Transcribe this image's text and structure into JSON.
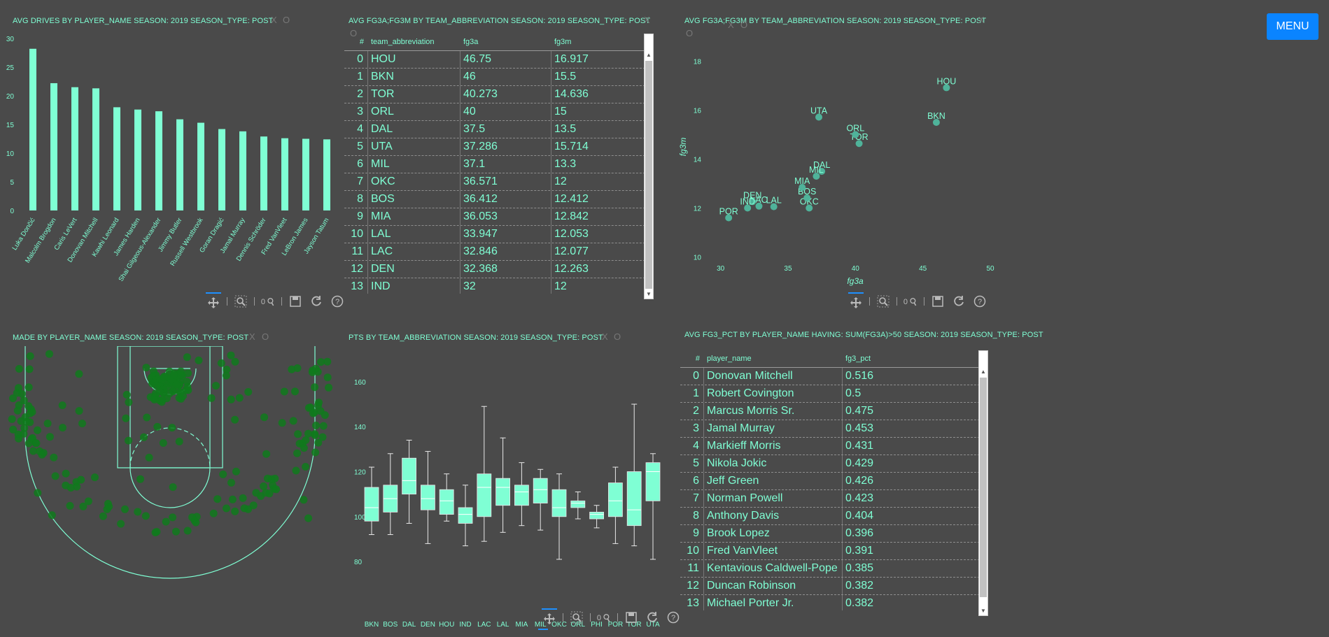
{
  "menu": {
    "label": "MENU"
  },
  "drives_panel": {
    "title": "AVG DRIVES BY PLAYER_NAME SEASON: 2019 SEASON_TYPE: POST",
    "close": "X",
    "pop": "O",
    "chart_data": {
      "type": "bar",
      "categories": [
        "Luka Dončić",
        "Malcolm Brogdon",
        "Caris LeVert",
        "Donovan Mitchell",
        "Kawhi Leonard",
        "James Harden",
        "Shai Gilgeous-Alexander",
        "Jimmy Butler",
        "Russell Westbrook",
        "Goran Dragić",
        "Jamal Murray",
        "Dennis Schröder",
        "Fred VanVleet",
        "LeBron James",
        "Jayson Tatum"
      ],
      "values": [
        28.2,
        22.2,
        21.5,
        21.3,
        18.0,
        17.6,
        17.3,
        15.9,
        15.3,
        14.2,
        13.8,
        12.9,
        12.6,
        12.5,
        12.4
      ],
      "ylim": [
        0,
        30
      ],
      "yticks": [
        "0",
        "5",
        "10",
        "15",
        "20",
        "25",
        "30"
      ],
      "color": "#7fffd4"
    }
  },
  "fg3_team_table": {
    "title": "AVG FG3A;FG3M BY TEAM_ABBREVIATION SEASON: 2019 SEASON_TYPE: POST",
    "close": "X",
    "pop": "O",
    "columns": [
      "#",
      "team_abbreviation",
      "fg3a",
      "fg3m"
    ],
    "rows": [
      [
        "0",
        "HOU",
        "46.75",
        "16.917"
      ],
      [
        "1",
        "BKN",
        "46",
        "15.5"
      ],
      [
        "2",
        "TOR",
        "40.273",
        "14.636"
      ],
      [
        "3",
        "ORL",
        "40",
        "15"
      ],
      [
        "4",
        "DAL",
        "37.5",
        "13.5"
      ],
      [
        "5",
        "UTA",
        "37.286",
        "15.714"
      ],
      [
        "6",
        "MIL",
        "37.1",
        "13.3"
      ],
      [
        "7",
        "OKC",
        "36.571",
        "12"
      ],
      [
        "8",
        "BOS",
        "36.412",
        "12.412"
      ],
      [
        "9",
        "MIA",
        "36.053",
        "12.842"
      ],
      [
        "10",
        "LAL",
        "33.947",
        "12.053"
      ],
      [
        "11",
        "LAC",
        "32.846",
        "12.077"
      ],
      [
        "12",
        "DEN",
        "32.368",
        "12.263"
      ],
      [
        "13",
        "IND",
        "32",
        "12"
      ]
    ]
  },
  "fg3_scatter": {
    "title": "AVG FG3A;FG3M BY TEAM_ABBREVIATION SEASON: 2019 SEASON_TYPE: POST",
    "close": "X",
    "pop": "O",
    "chart_data": {
      "type": "scatter",
      "xlabel": "fg3a",
      "ylabel": "fg3m",
      "xlim": [
        29.5,
        50
      ],
      "ylim": [
        9.5,
        18.5
      ],
      "xticks": [
        "30",
        "35",
        "40",
        "45",
        "50"
      ],
      "yticks": [
        "10",
        "12",
        "14",
        "16",
        "18"
      ],
      "points": [
        {
          "label": "HOU",
          "x": 46.75,
          "y": 16.917
        },
        {
          "label": "BKN",
          "x": 46,
          "y": 15.5
        },
        {
          "label": "TOR",
          "x": 40.273,
          "y": 14.636
        },
        {
          "label": "ORL",
          "x": 40,
          "y": 15
        },
        {
          "label": "DAL",
          "x": 37.5,
          "y": 13.5
        },
        {
          "label": "UTA",
          "x": 37.286,
          "y": 15.714
        },
        {
          "label": "MIL",
          "x": 37.1,
          "y": 13.3
        },
        {
          "label": "OKC",
          "x": 36.571,
          "y": 12
        },
        {
          "label": "BOS",
          "x": 36.412,
          "y": 12.412
        },
        {
          "label": "MIA",
          "x": 36.053,
          "y": 12.842
        },
        {
          "label": "LAL",
          "x": 33.947,
          "y": 12.053
        },
        {
          "label": "LAC",
          "x": 32.846,
          "y": 12.077
        },
        {
          "label": "DEN",
          "x": 32.368,
          "y": 12.263
        },
        {
          "label": "IND",
          "x": 32,
          "y": 12
        },
        {
          "label": "POR",
          "x": 30.6,
          "y": 11.6
        }
      ],
      "color": "#4fb39a"
    }
  },
  "shots_panel": {
    "title": "MADE BY PLAYER_NAME SEASON: 2019 SEASON_TYPE: POST",
    "close": "X",
    "pop": "O",
    "court_color": "#7fffd4",
    "shot_color": "#0f7a1c"
  },
  "pts_panel": {
    "title": "PTS BY TEAM_ABBREVIATION SEASON: 2019 SEASON_TYPE: POST",
    "close": "X",
    "pop": "O",
    "chart_data": {
      "type": "box",
      "categories": [
        "BKN",
        "BOS",
        "DAL",
        "DEN",
        "HOU",
        "IND",
        "LAC",
        "LAL",
        "MIA",
        "MIL",
        "OKC",
        "ORL",
        "PHI",
        "POR",
        "TOR",
        "UTA"
      ],
      "ylim": [
        76,
        164
      ],
      "yticks": [
        "80",
        "100",
        "120",
        "140",
        "160"
      ],
      "boxes": [
        {
          "min": 92,
          "q1": 98,
          "median": 104,
          "q3": 113,
          "max": 122
        },
        {
          "min": 92,
          "q1": 102,
          "median": 108,
          "q3": 114,
          "max": 128
        },
        {
          "min": 97,
          "q1": 110,
          "median": 116,
          "q3": 126,
          "max": 134
        },
        {
          "min": 88,
          "q1": 103,
          "median": 108,
          "q3": 114,
          "max": 129
        },
        {
          "min": 98,
          "q1": 101,
          "median": 107,
          "q3": 112,
          "max": 119
        },
        {
          "min": 87,
          "q1": 97,
          "median": 101,
          "q3": 104,
          "max": 114
        },
        {
          "min": 89,
          "q1": 100,
          "median": 113,
          "q3": 119,
          "max": 149
        },
        {
          "min": 93,
          "q1": 105,
          "median": 113,
          "q3": 117,
          "max": 135
        },
        {
          "min": 96,
          "q1": 105,
          "median": 111,
          "q3": 114,
          "max": 124
        },
        {
          "min": 94,
          "q1": 106,
          "median": 112,
          "q3": 117,
          "max": 121
        },
        {
          "min": 81,
          "q1": 100,
          "median": 104,
          "q3": 112,
          "max": 119
        },
        {
          "min": 99,
          "q1": 104,
          "median": 106,
          "q3": 107,
          "max": 111
        },
        {
          "min": 95,
          "q1": 99,
          "median": 101,
          "q3": 102,
          "max": 105
        },
        {
          "min": 88,
          "q1": 100,
          "median": 107,
          "q3": 115,
          "max": 122
        },
        {
          "min": 87,
          "q1": 96,
          "median": 103,
          "q3": 120,
          "max": 150
        },
        {
          "min": 81,
          "q1": 107,
          "median": 120,
          "q3": 124,
          "max": 128
        }
      ],
      "color": "#7fffd4"
    }
  },
  "fg3pct_table": {
    "title": "AVG FG3_PCT BY PLAYER_NAME HAVING: SUM(FG3A)>50 SEASON: 2019 SEASON_TYPE: POST",
    "close": "X",
    "pop": "O",
    "columns": [
      "#",
      "player_name",
      "fg3_pct"
    ],
    "rows": [
      [
        "0",
        "Donovan Mitchell",
        "0.516"
      ],
      [
        "1",
        "Robert Covington",
        "0.5"
      ],
      [
        "2",
        "Marcus Morris Sr.",
        "0.475"
      ],
      [
        "3",
        "Jamal Murray",
        "0.453"
      ],
      [
        "4",
        "Markieff Morris",
        "0.431"
      ],
      [
        "5",
        "Nikola Jokic",
        "0.429"
      ],
      [
        "6",
        "Jeff Green",
        "0.426"
      ],
      [
        "7",
        "Norman Powell",
        "0.423"
      ],
      [
        "8",
        "Anthony Davis",
        "0.404"
      ],
      [
        "9",
        "Brook Lopez",
        "0.396"
      ],
      [
        "10",
        "Fred VanVleet",
        "0.391"
      ],
      [
        "11",
        "Kentavious Caldwell-Pope",
        "0.385"
      ],
      [
        "12",
        "Duncan Robinson",
        "0.382"
      ],
      [
        "13",
        "Michael Porter Jr.",
        "0.382"
      ]
    ]
  },
  "toolbar_icons": [
    "pan-icon",
    "zoom-icon",
    "autoscale-icon",
    "save-icon",
    "reset-icon",
    "help-icon"
  ]
}
